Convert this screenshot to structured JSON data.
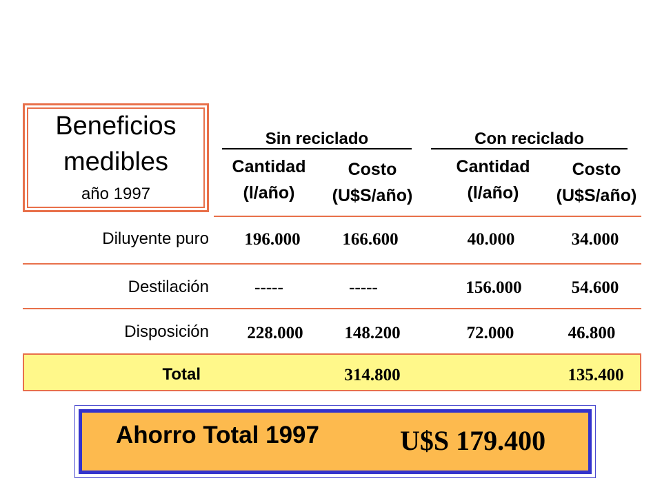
{
  "title": {
    "line1": "Beneficios",
    "line2": "medibles",
    "line3": "año 1997"
  },
  "groups": {
    "sin": "Sin reciclado",
    "con": "Con reciclado"
  },
  "columns": {
    "cantidad_line1": "Cantidad",
    "cantidad_line2": "(l/año)",
    "costo_line1": "Costo",
    "costo_line2": "(U$S/año)"
  },
  "rows": [
    {
      "label": "Diluyente puro",
      "sin_cantidad": "196.000",
      "sin_costo": "166.600",
      "con_cantidad": "40.000",
      "con_costo": "34.000"
    },
    {
      "label": "Destilación",
      "sin_cantidad": "-----",
      "sin_costo": "-----",
      "con_cantidad": "156.000",
      "con_costo": "54.600"
    },
    {
      "label": "Disposición",
      "sin_cantidad": "228.000",
      "sin_costo": "148.200",
      "con_cantidad": "72.000",
      "con_costo": "46.800"
    }
  ],
  "total": {
    "label": "Total",
    "sin_costo": "314.800",
    "con_costo": "135.400"
  },
  "savings": {
    "label": "Ahorro Total 1997",
    "value": "U$S 179.400"
  },
  "colors": {
    "accent_border": "#E8704A",
    "total_fill": "#FFF88A",
    "savings_fill": "#FDBA4E",
    "savings_border": "#3333CC"
  }
}
